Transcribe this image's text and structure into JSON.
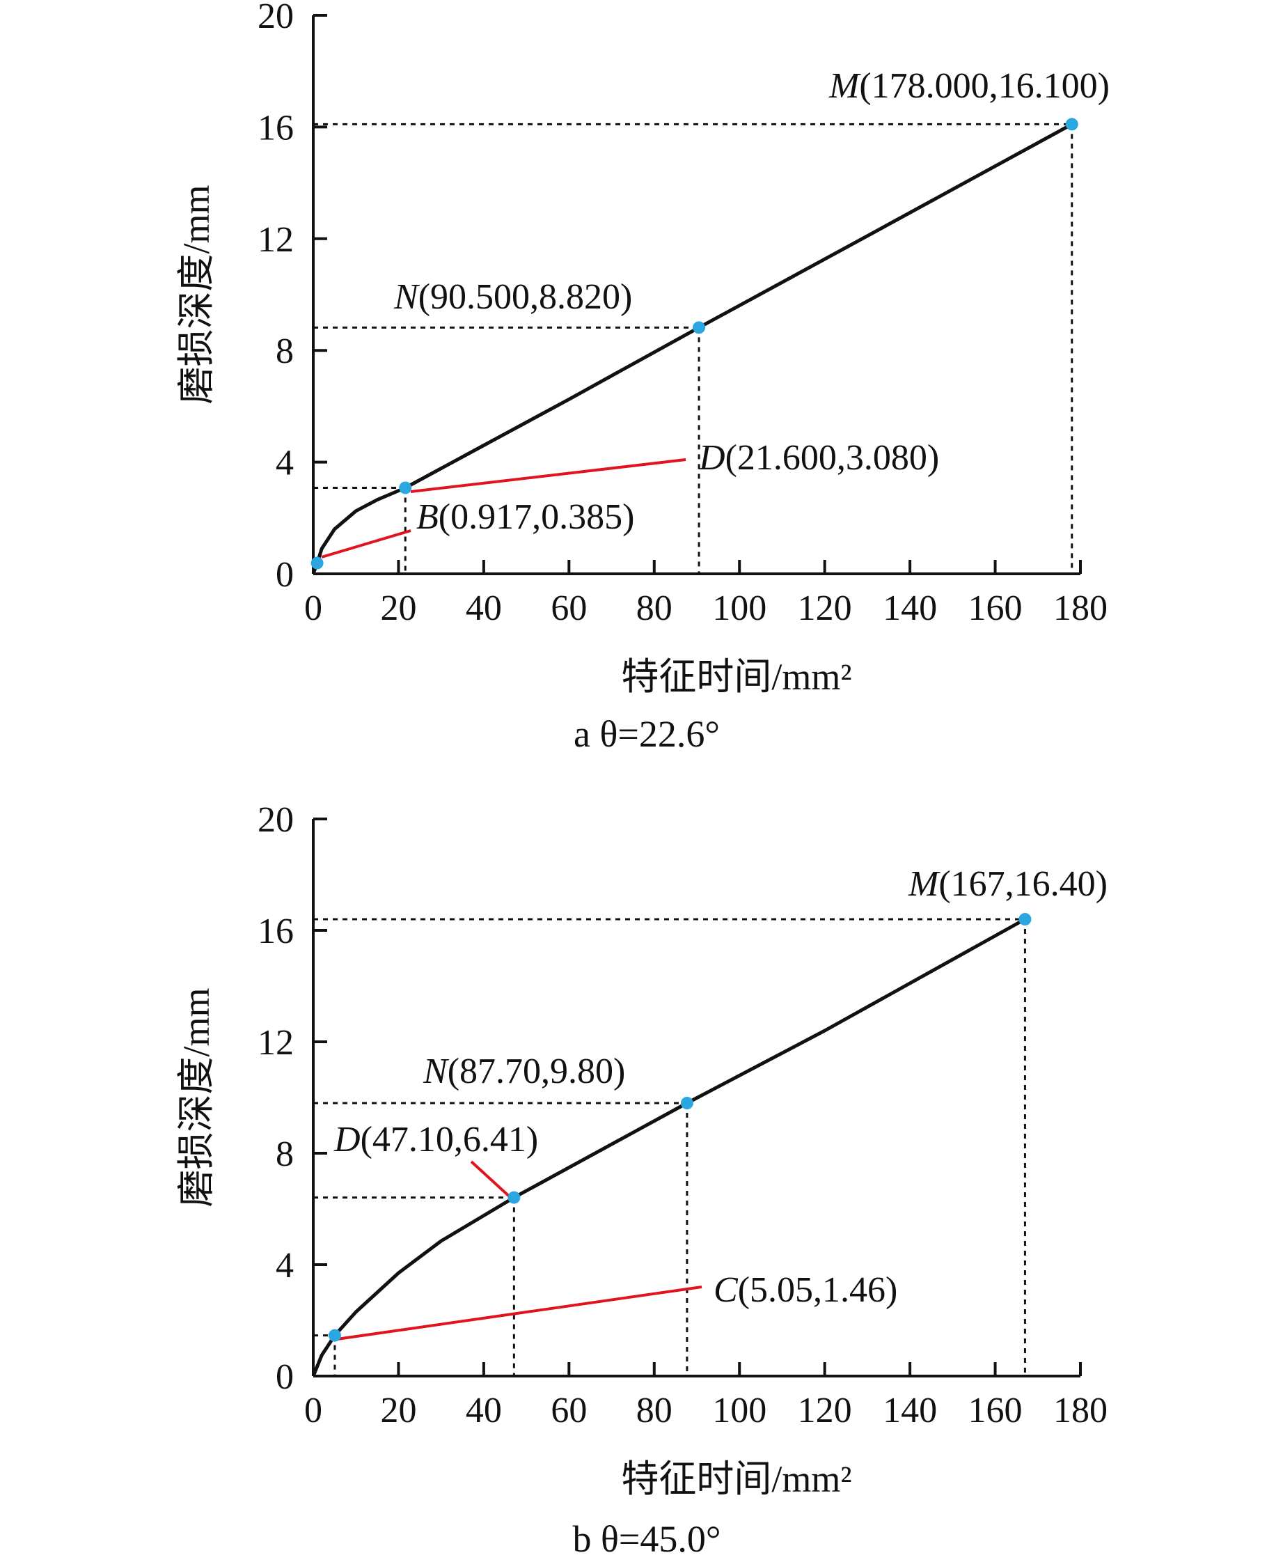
{
  "chart_data": [
    {
      "type": "line",
      "caption": "a  θ=22.6°",
      "xlabel": "特征时间/mm²",
      "ylabel": "磨损深度/mm",
      "xlim": [
        0,
        180
      ],
      "ylim": [
        0,
        20
      ],
      "xticks": [
        "0",
        "20",
        "40",
        "60",
        "80",
        "100",
        "120",
        "140",
        "160",
        "180"
      ],
      "yticks": [
        "0",
        "4",
        "8",
        "12",
        "16",
        "20"
      ],
      "grid": false,
      "curve": [
        [
          0,
          0
        ],
        [
          0.917,
          0.385
        ],
        [
          2,
          0.9
        ],
        [
          5,
          1.6
        ],
        [
          10,
          2.25
        ],
        [
          15,
          2.65
        ],
        [
          21.6,
          3.08
        ],
        [
          40,
          4.6
        ],
        [
          60,
          6.25
        ],
        [
          90.5,
          8.82
        ],
        [
          130,
          12.1
        ],
        [
          178,
          16.1
        ]
      ],
      "points": [
        {
          "name": "M",
          "coords": "(178.000,16.100)",
          "x": 178.0,
          "y": 16.1
        },
        {
          "name": "N",
          "coords": "(90.500,8.820)",
          "x": 90.5,
          "y": 8.82
        },
        {
          "name": "D",
          "coords": "(21.600,3.080)",
          "x": 21.6,
          "y": 3.08
        },
        {
          "name": "B",
          "coords": "(0.917,0.385)",
          "x": 0.917,
          "y": 0.385
        }
      ],
      "colors": {
        "curve": "#111111",
        "point": "#2aa7e0",
        "leader": "#e0141e"
      }
    },
    {
      "type": "line",
      "caption": "b  θ=45.0°",
      "xlabel": "特征时间/mm²",
      "ylabel": "磨损深度/mm",
      "xlim": [
        0,
        180
      ],
      "ylim": [
        0,
        20
      ],
      "xticks": [
        "0",
        "20",
        "40",
        "60",
        "80",
        "100",
        "120",
        "140",
        "160",
        "180"
      ],
      "yticks": [
        "0",
        "4",
        "8",
        "12",
        "16",
        "20"
      ],
      "grid": false,
      "curve": [
        [
          0,
          0
        ],
        [
          2,
          0.75
        ],
        [
          5.05,
          1.46
        ],
        [
          10,
          2.3
        ],
        [
          20,
          3.7
        ],
        [
          30,
          4.85
        ],
        [
          47.1,
          6.41
        ],
        [
          87.7,
          9.8
        ],
        [
          120,
          12.4
        ],
        [
          167,
          16.4
        ]
      ],
      "points": [
        {
          "name": "M",
          "coords": "(167,16.40)",
          "x": 167,
          "y": 16.4
        },
        {
          "name": "N",
          "coords": "(87.70,9.80)",
          "x": 87.7,
          "y": 9.8
        },
        {
          "name": "D",
          "coords": "(47.10,6.41)",
          "x": 47.1,
          "y": 6.41
        },
        {
          "name": "C",
          "coords": "(5.05,1.46)",
          "x": 5.05,
          "y": 1.46
        }
      ],
      "colors": {
        "curve": "#111111",
        "point": "#2aa7e0",
        "leader": "#e0141e"
      }
    }
  ]
}
